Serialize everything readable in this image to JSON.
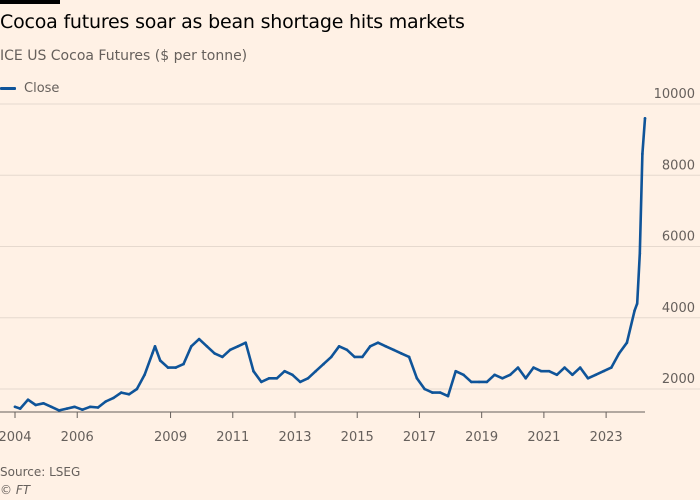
{
  "chart_data": {
    "type": "line",
    "title": "Cocoa futures soar as bean shortage hits markets",
    "subtitle": "ICE US Cocoa Futures ($ per tonne)",
    "xlabel": "",
    "ylabel": "",
    "x_tick_labels": [
      "2004",
      "2006",
      "2009",
      "2011",
      "2013",
      "2015",
      "2017",
      "2019",
      "2021",
      "2023"
    ],
    "y_ticks": [
      2000,
      4000,
      6000,
      8000,
      10000
    ],
    "ylim": [
      1200,
      10000
    ],
    "xlim": [
      "2004-01",
      "2024-04"
    ],
    "grid": true,
    "legend_position": "top-left",
    "source": "Source: LSEG",
    "credit": "© FT",
    "series": [
      {
        "name": "Close",
        "color": "#0f5499",
        "x": [
          "2004-01",
          "2004-03",
          "2004-06",
          "2004-09",
          "2004-12",
          "2005-03",
          "2005-06",
          "2005-09",
          "2005-12",
          "2006-03",
          "2006-06",
          "2006-09",
          "2006-12",
          "2007-03",
          "2007-06",
          "2007-09",
          "2007-12",
          "2008-03",
          "2008-06",
          "2008-07",
          "2008-09",
          "2008-12",
          "2009-03",
          "2009-06",
          "2009-09",
          "2009-12",
          "2010-03",
          "2010-06",
          "2010-09",
          "2010-12",
          "2011-03",
          "2011-06",
          "2011-09",
          "2011-12",
          "2012-03",
          "2012-06",
          "2012-09",
          "2012-12",
          "2013-03",
          "2013-06",
          "2013-09",
          "2013-12",
          "2014-03",
          "2014-06",
          "2014-09",
          "2014-12",
          "2015-03",
          "2015-06",
          "2015-09",
          "2015-12",
          "2016-03",
          "2016-06",
          "2016-09",
          "2016-12",
          "2017-03",
          "2017-06",
          "2017-09",
          "2017-12",
          "2018-03",
          "2018-06",
          "2018-09",
          "2018-12",
          "2019-03",
          "2019-06",
          "2019-09",
          "2019-12",
          "2020-03",
          "2020-06",
          "2020-09",
          "2020-12",
          "2021-03",
          "2021-06",
          "2021-09",
          "2021-12",
          "2022-03",
          "2022-06",
          "2022-09",
          "2022-12",
          "2023-03",
          "2023-06",
          "2023-09",
          "2023-12",
          "2024-01",
          "2024-02",
          "2024-03",
          "2024-04"
        ],
        "values": [
          1500,
          1450,
          1700,
          1550,
          1600,
          1500,
          1400,
          1450,
          1500,
          1420,
          1500,
          1480,
          1650,
          1750,
          1900,
          1850,
          2000,
          2400,
          3000,
          3200,
          2800,
          2600,
          2600,
          2700,
          3200,
          3400,
          3200,
          3000,
          2900,
          3100,
          3200,
          3300,
          2500,
          2200,
          2300,
          2300,
          2500,
          2400,
          2200,
          2300,
          2500,
          2700,
          2900,
          3200,
          3100,
          2900,
          2900,
          3200,
          3300,
          3200,
          3100,
          3000,
          2900,
          2300,
          2000,
          1900,
          1900,
          1800,
          2500,
          2400,
          2200,
          2200,
          2200,
          2400,
          2300,
          2400,
          2600,
          2300,
          2600,
          2500,
          2500,
          2400,
          2600,
          2400,
          2600,
          2300,
          2400,
          2500,
          2600,
          3000,
          3300,
          4200,
          4400,
          5800,
          8600,
          9600
        ]
      }
    ]
  }
}
